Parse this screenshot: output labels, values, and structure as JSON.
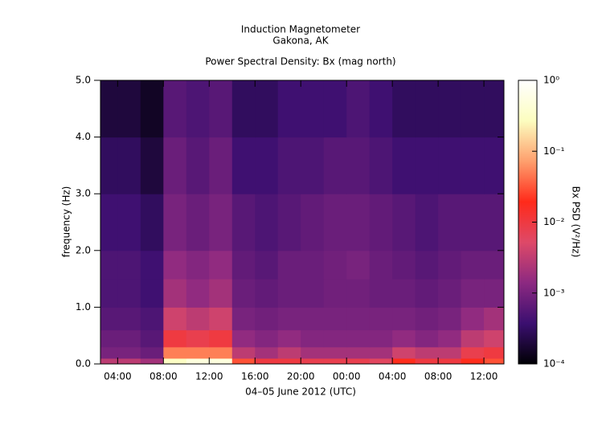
{
  "chart_data": {
    "type": "heatmap",
    "title": "Induction Magnetometer",
    "subtitle": "Gakona, AK",
    "plot_title": "Power Spectral Density: Bx (mag north)",
    "x_label": "04–05 June 2012 (UTC)",
    "y_label": "frequency (Hz)",
    "colorbar_label": "Bx PSD (V²/Hz)",
    "xbins": [
      2.5,
      4,
      6,
      8,
      10,
      12,
      14,
      16,
      18,
      20,
      22,
      24,
      26,
      28,
      30,
      32,
      34,
      36,
      37.75
    ],
    "ybins": [
      0,
      0.1,
      0.3,
      0.6,
      1,
      1.5,
      2,
      3,
      4,
      5
    ],
    "z": [
      [
        0.003,
        0.003,
        0.002,
        0.3,
        0.5,
        0.5,
        0.03,
        0.01,
        0.01,
        0.008,
        0.008,
        0.008,
        0.006,
        0.02,
        0.01,
        0.01,
        0.02,
        0.03
      ],
      [
        0.001,
        0.001,
        0.0008,
        0.05,
        0.05,
        0.05,
        0.003,
        0.002,
        0.003,
        0.002,
        0.002,
        0.002,
        0.002,
        0.004,
        0.003,
        0.003,
        0.008,
        0.01
      ],
      [
        0.0008,
        0.0008,
        0.0006,
        0.01,
        0.008,
        0.01,
        0.0015,
        0.0012,
        0.0015,
        0.0012,
        0.0012,
        0.0012,
        0.0012,
        0.0015,
        0.0012,
        0.0015,
        0.003,
        0.004
      ],
      [
        0.0006,
        0.0006,
        0.0005,
        0.004,
        0.003,
        0.004,
        0.001,
        0.0009,
        0.001,
        0.001,
        0.001,
        0.001,
        0.001,
        0.001,
        0.0009,
        0.001,
        0.0015,
        0.002
      ],
      [
        0.0005,
        0.0005,
        0.0004,
        0.002,
        0.0015,
        0.002,
        0.0008,
        0.0007,
        0.0008,
        0.0008,
        0.0009,
        0.0009,
        0.0008,
        0.0008,
        0.0007,
        0.0008,
        0.001,
        0.001
      ],
      [
        0.0005,
        0.0005,
        0.0004,
        0.0015,
        0.0012,
        0.0015,
        0.0007,
        0.0006,
        0.0008,
        0.0008,
        0.0009,
        0.001,
        0.0008,
        0.0007,
        0.0006,
        0.0007,
        0.0008,
        0.0008
      ],
      [
        0.0004,
        0.0004,
        0.0003,
        0.001,
        0.0008,
        0.001,
        0.0006,
        0.0005,
        0.0006,
        0.0007,
        0.0008,
        0.0008,
        0.0007,
        0.0006,
        0.0005,
        0.0006,
        0.0006,
        0.0006
      ],
      [
        0.0003,
        0.0003,
        0.0002,
        0.0008,
        0.0006,
        0.0008,
        0.0004,
        0.0004,
        0.0005,
        0.0005,
        0.0006,
        0.0006,
        0.0005,
        0.0004,
        0.0004,
        0.0004,
        0.0004,
        0.0004
      ],
      [
        0.0002,
        0.0002,
        0.00015,
        0.0006,
        0.0005,
        0.0006,
        0.0003,
        0.0003,
        0.0004,
        0.0004,
        0.0004,
        0.0005,
        0.0004,
        0.0003,
        0.0003,
        0.0003,
        0.0003,
        0.0003
      ]
    ],
    "xlim": [
      2.5,
      37.75
    ],
    "xticks": [
      {
        "value": 4,
        "label": "04:00"
      },
      {
        "value": 8,
        "label": "08:00"
      },
      {
        "value": 12,
        "label": "12:00"
      },
      {
        "value": 16,
        "label": "16:00"
      },
      {
        "value": 20,
        "label": "20:00"
      },
      {
        "value": 24,
        "label": "00:00"
      },
      {
        "value": 28,
        "label": "04:00"
      },
      {
        "value": 32,
        "label": "08:00"
      },
      {
        "value": 36,
        "label": "12:00"
      }
    ],
    "ylim": [
      0,
      5
    ],
    "yticks": [
      {
        "value": 0,
        "label": "0.0"
      },
      {
        "value": 1,
        "label": "1.0"
      },
      {
        "value": 2,
        "label": "2.0"
      },
      {
        "value": 3,
        "label": "3.0"
      },
      {
        "value": 4,
        "label": "4.0"
      },
      {
        "value": 5,
        "label": "5.0"
      }
    ],
    "clim": [
      0.0001,
      1
    ],
    "clog": true,
    "cticks": [
      {
        "value": 0.0001,
        "label": "10⁻⁴"
      },
      {
        "value": 0.001,
        "label": "10⁻³"
      },
      {
        "value": 0.01,
        "label": "10⁻²"
      },
      {
        "value": 0.1,
        "label": "10⁻¹"
      },
      {
        "value": 1,
        "label": "10⁰"
      }
    ],
    "colormap": [
      "#000004",
      "#3b0f70",
      "#8c2981",
      "#de4968",
      "#ff2a1a",
      "#fe9f6d",
      "#fcfdbf",
      "#ffffff"
    ]
  }
}
